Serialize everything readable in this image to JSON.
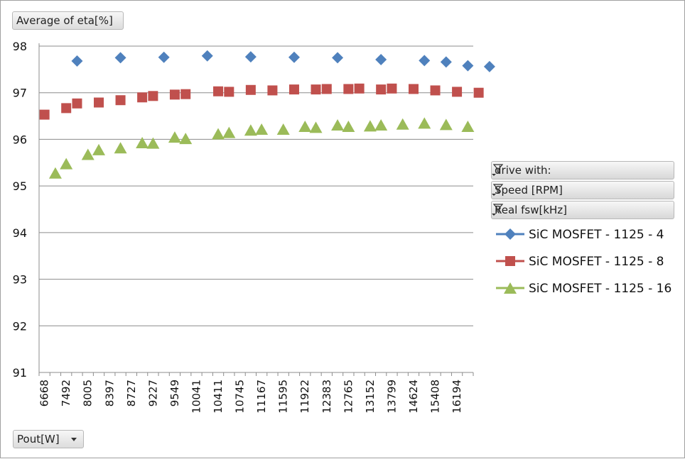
{
  "measure_button": "Average of eta[%]",
  "axis_field_button": "Pout[W]",
  "filters": [
    {
      "label": "drive with:"
    },
    {
      "label": "Speed [RPM]"
    },
    {
      "label": "Real fsw[kHz]"
    }
  ],
  "colors": {
    "series1": "#4f81bd",
    "series2": "#c0504d",
    "series3": "#9bbb59"
  },
  "chart_data": {
    "type": "scatter",
    "ylim": [
      91,
      98
    ],
    "yticks": [
      "91",
      "92",
      "93",
      "94",
      "95",
      "96",
      "97",
      "98"
    ],
    "grid": true,
    "legend_position": "right",
    "x_tick_labels": [
      "6668",
      "7492",
      "8005",
      "8397",
      "8727",
      "9227",
      "9549",
      "10041",
      "10411",
      "10745",
      "11167",
      "11595",
      "11922",
      "12383",
      "12765",
      "13152",
      "13799",
      "14624",
      "15408",
      "16194"
    ],
    "x_category_count": 40,
    "series": [
      {
        "name": "SiC MOSFET - 1125 - 4",
        "marker": "diamond",
        "points": [
          [
            3,
            97.68
          ],
          [
            7,
            97.75
          ],
          [
            11,
            97.76
          ],
          [
            15,
            97.79
          ],
          [
            19,
            97.77
          ],
          [
            23,
            97.76
          ],
          [
            27,
            97.75
          ],
          [
            31,
            97.71
          ],
          [
            35,
            97.69
          ],
          [
            37,
            97.66
          ],
          [
            39,
            97.58
          ],
          [
            41,
            97.56
          ]
        ]
      },
      {
        "name": "SiC MOSFET - 1125 - 8",
        "marker": "square",
        "points": [
          [
            0,
            96.53
          ],
          [
            2,
            96.67
          ],
          [
            3,
            96.77
          ],
          [
            5,
            96.79
          ],
          [
            7,
            96.84
          ],
          [
            9,
            96.9
          ],
          [
            10,
            96.93
          ],
          [
            12,
            96.96
          ],
          [
            13,
            96.97
          ],
          [
            16,
            97.03
          ],
          [
            17,
            97.02
          ],
          [
            19,
            97.06
          ],
          [
            21,
            97.05
          ],
          [
            23,
            97.07
          ],
          [
            25,
            97.07
          ],
          [
            26,
            97.08
          ],
          [
            28,
            97.08
          ],
          [
            29,
            97.09
          ],
          [
            31,
            97.07
          ],
          [
            32,
            97.09
          ],
          [
            34,
            97.08
          ],
          [
            36,
            97.05
          ],
          [
            38,
            97.02
          ],
          [
            40,
            97.0
          ]
        ]
      },
      {
        "name": "SiC MOSFET - 1125 - 16",
        "marker": "triangle",
        "points": [
          [
            1,
            95.28
          ],
          [
            2,
            95.48
          ],
          [
            4,
            95.68
          ],
          [
            5,
            95.78
          ],
          [
            7,
            95.82
          ],
          [
            9,
            95.93
          ],
          [
            10,
            95.92
          ],
          [
            12,
            96.05
          ],
          [
            13,
            96.02
          ],
          [
            16,
            96.12
          ],
          [
            17,
            96.15
          ],
          [
            19,
            96.2
          ],
          [
            20,
            96.22
          ],
          [
            22,
            96.22
          ],
          [
            24,
            96.28
          ],
          [
            25,
            96.26
          ],
          [
            27,
            96.31
          ],
          [
            28,
            96.28
          ],
          [
            30,
            96.29
          ],
          [
            31,
            96.31
          ],
          [
            33,
            96.33
          ],
          [
            35,
            96.35
          ],
          [
            37,
            96.32
          ],
          [
            39,
            96.28
          ]
        ]
      }
    ]
  }
}
